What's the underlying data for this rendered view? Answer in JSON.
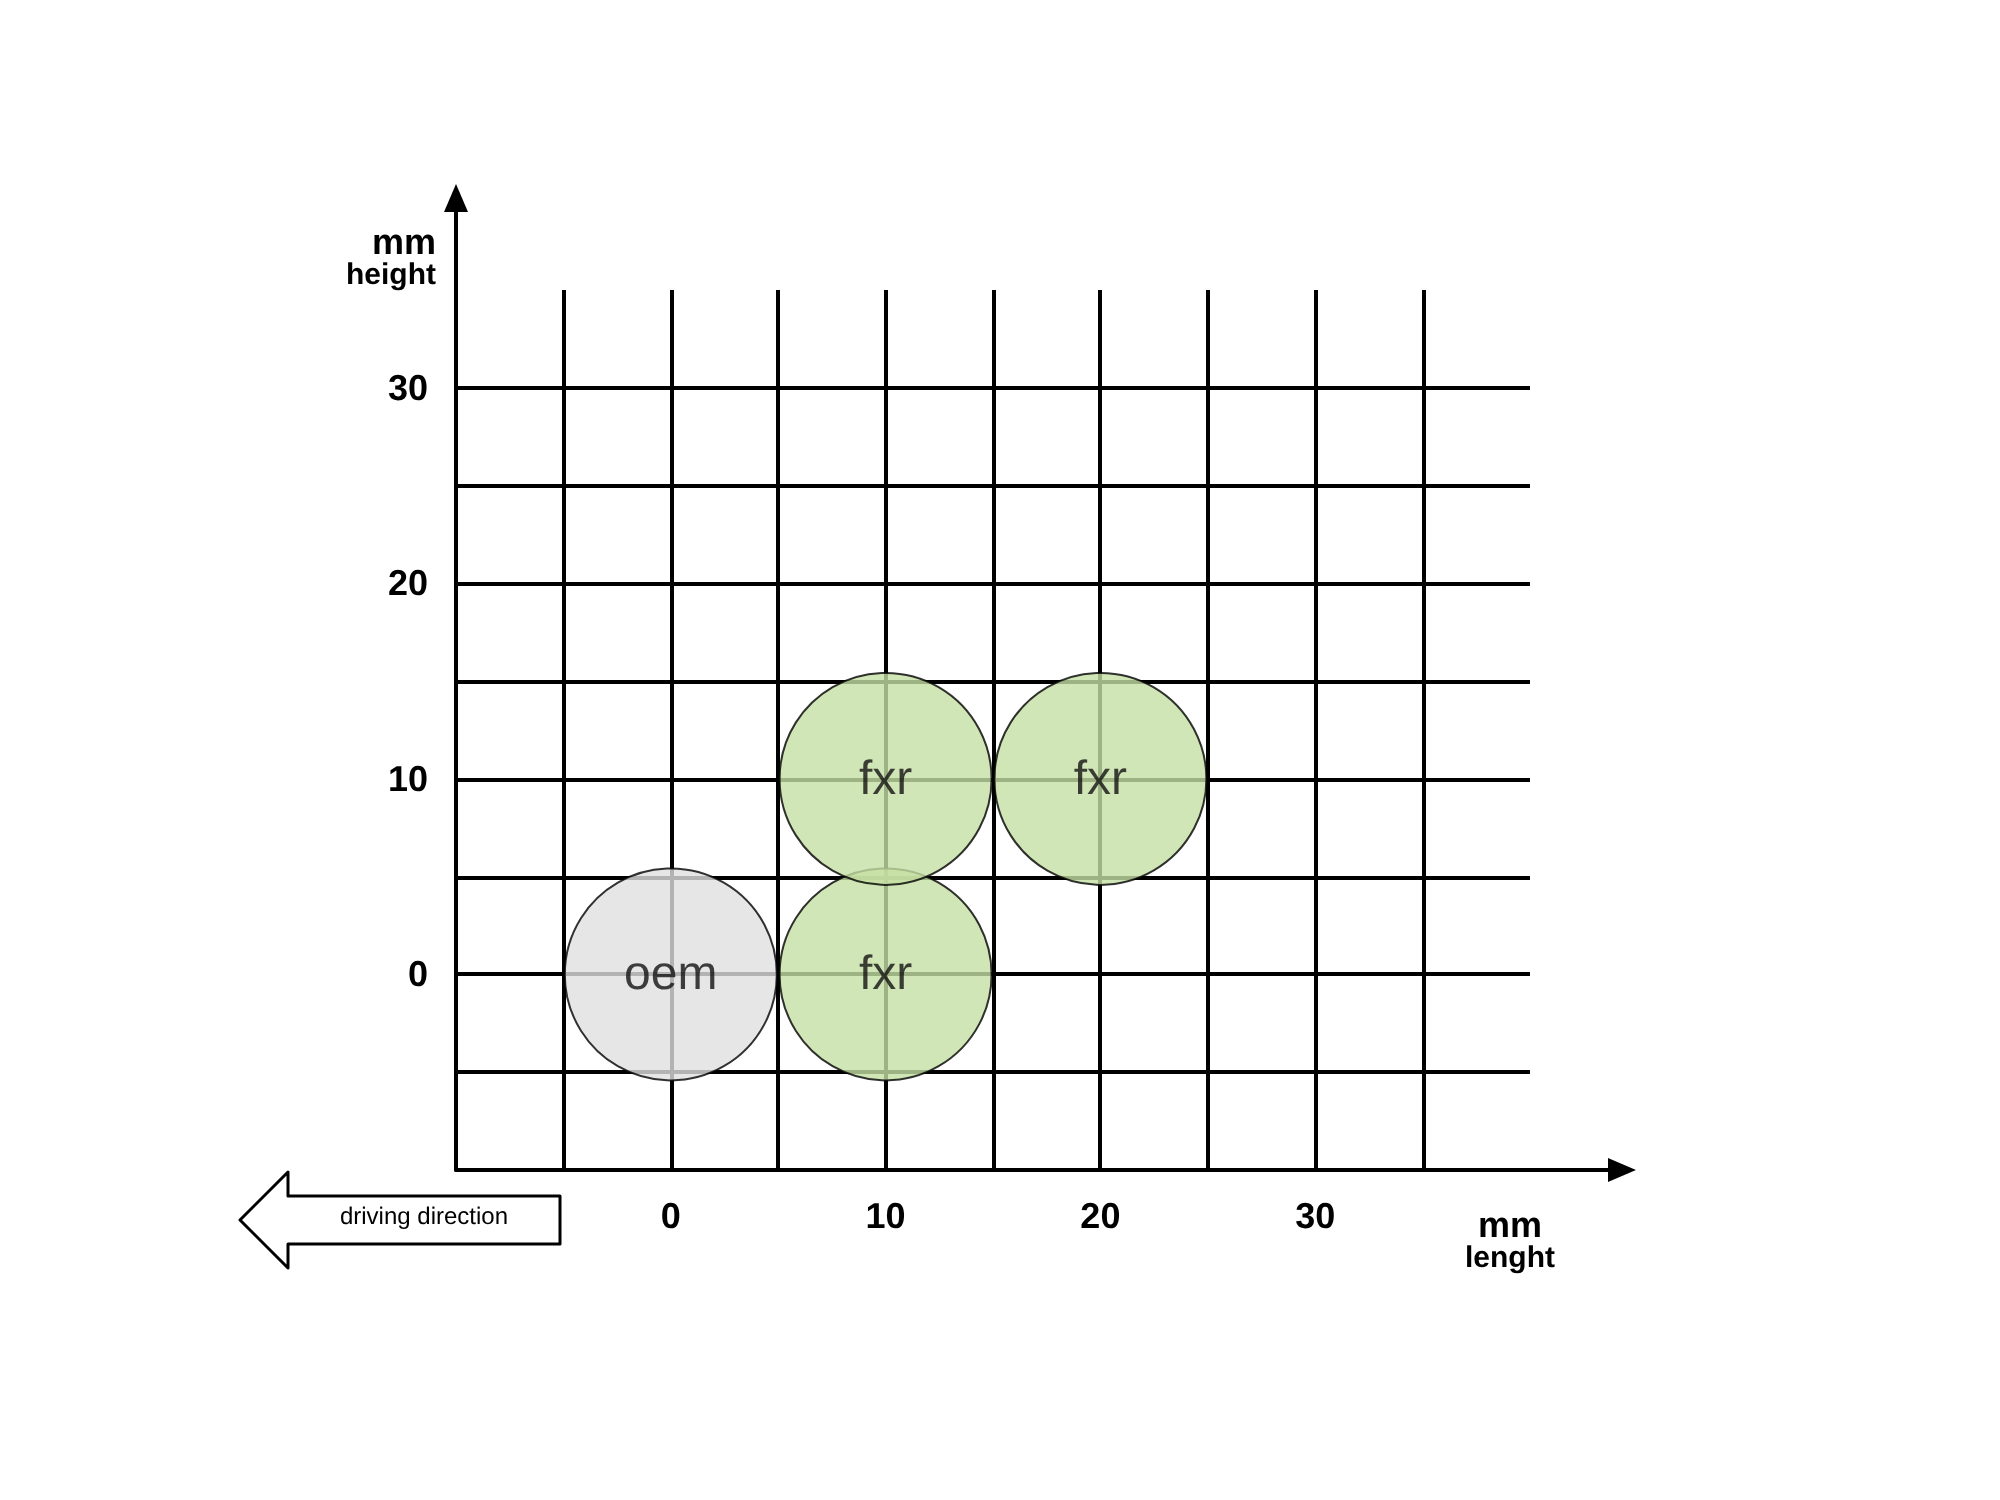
{
  "chart_data": {
    "type": "bubble",
    "xlabel": "mm lenght",
    "ylabel": "mm height",
    "x": [
      0,
      10,
      10,
      20
    ],
    "values": [
      0,
      0,
      10,
      10
    ],
    "sizes": [
      1,
      1,
      1,
      1
    ],
    "colors": [
      "#e0e0e0",
      "#c6e0a4",
      "#c6e0a4",
      "#c6e0a4"
    ],
    "xlim": [
      -10,
      40
    ],
    "ylim": [
      -10,
      35
    ],
    "xticks": [
      {
        "value": -5,
        "label": null
      },
      0,
      {
        "value": 5,
        "label": null
      },
      10,
      {
        "value": 15,
        "label": null
      },
      20,
      {
        "value": 25,
        "label": null
      },
      30,
      {
        "value": 35,
        "label": null
      }
    ],
    "yticks": [
      {
        "value": -5,
        "label": null
      },
      0,
      {
        "value": 5,
        "label": null
      },
      10,
      {
        "value": 15,
        "label": null
      },
      20,
      {
        "value": 25,
        "label": null
      },
      30
    ],
    "grid": true,
    "annotations": [
      {
        "text": "oem",
        "x": 0,
        "y": 0
      },
      {
        "text": "fxr",
        "x": 10,
        "y": 0
      },
      {
        "text": "fxr",
        "x": 10,
        "y": 10
      },
      {
        "text": "fxr",
        "x": 20,
        "y": 10
      },
      "driving direction"
    ]
  }
}
